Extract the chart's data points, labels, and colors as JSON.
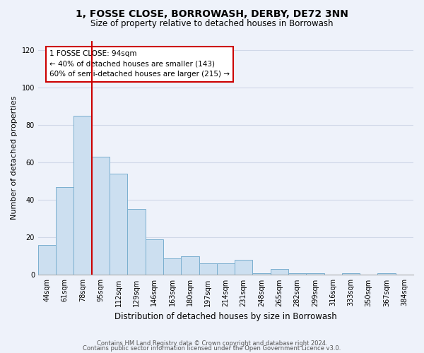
{
  "title": "1, FOSSE CLOSE, BORROWASH, DERBY, DE72 3NN",
  "subtitle": "Size of property relative to detached houses in Borrowash",
  "xlabel": "Distribution of detached houses by size in Borrowash",
  "ylabel": "Number of detached properties",
  "bar_labels": [
    "44sqm",
    "61sqm",
    "78sqm",
    "95sqm",
    "112sqm",
    "129sqm",
    "146sqm",
    "163sqm",
    "180sqm",
    "197sqm",
    "214sqm",
    "231sqm",
    "248sqm",
    "265sqm",
    "282sqm",
    "299sqm",
    "316sqm",
    "333sqm",
    "350sqm",
    "367sqm",
    "384sqm"
  ],
  "bar_values": [
    16,
    47,
    85,
    63,
    54,
    35,
    19,
    9,
    10,
    6,
    6,
    8,
    1,
    3,
    1,
    1,
    0,
    1,
    0,
    1,
    0
  ],
  "bar_color": "#ccdff0",
  "bar_edge_color": "#7aafcf",
  "vline_x": 2.5,
  "vline_color": "#cc0000",
  "annotation_text": "1 FOSSE CLOSE: 94sqm\n← 40% of detached houses are smaller (143)\n60% of semi-detached houses are larger (215) →",
  "annotation_box_color": "#ffffff",
  "annotation_box_edge_color": "#cc0000",
  "ylim": [
    0,
    125
  ],
  "yticks": [
    0,
    20,
    40,
    60,
    80,
    100,
    120
  ],
  "grid_color": "#d0d8e8",
  "background_color": "#eef2fa",
  "footer_line1": "Contains HM Land Registry data © Crown copyright and database right 2024.",
  "footer_line2": "Contains public sector information licensed under the Open Government Licence v3.0.",
  "title_fontsize": 10,
  "subtitle_fontsize": 8.5,
  "ylabel_fontsize": 8,
  "xlabel_fontsize": 8.5,
  "tick_fontsize": 7,
  "footer_fontsize": 6,
  "annot_fontsize": 7.5
}
